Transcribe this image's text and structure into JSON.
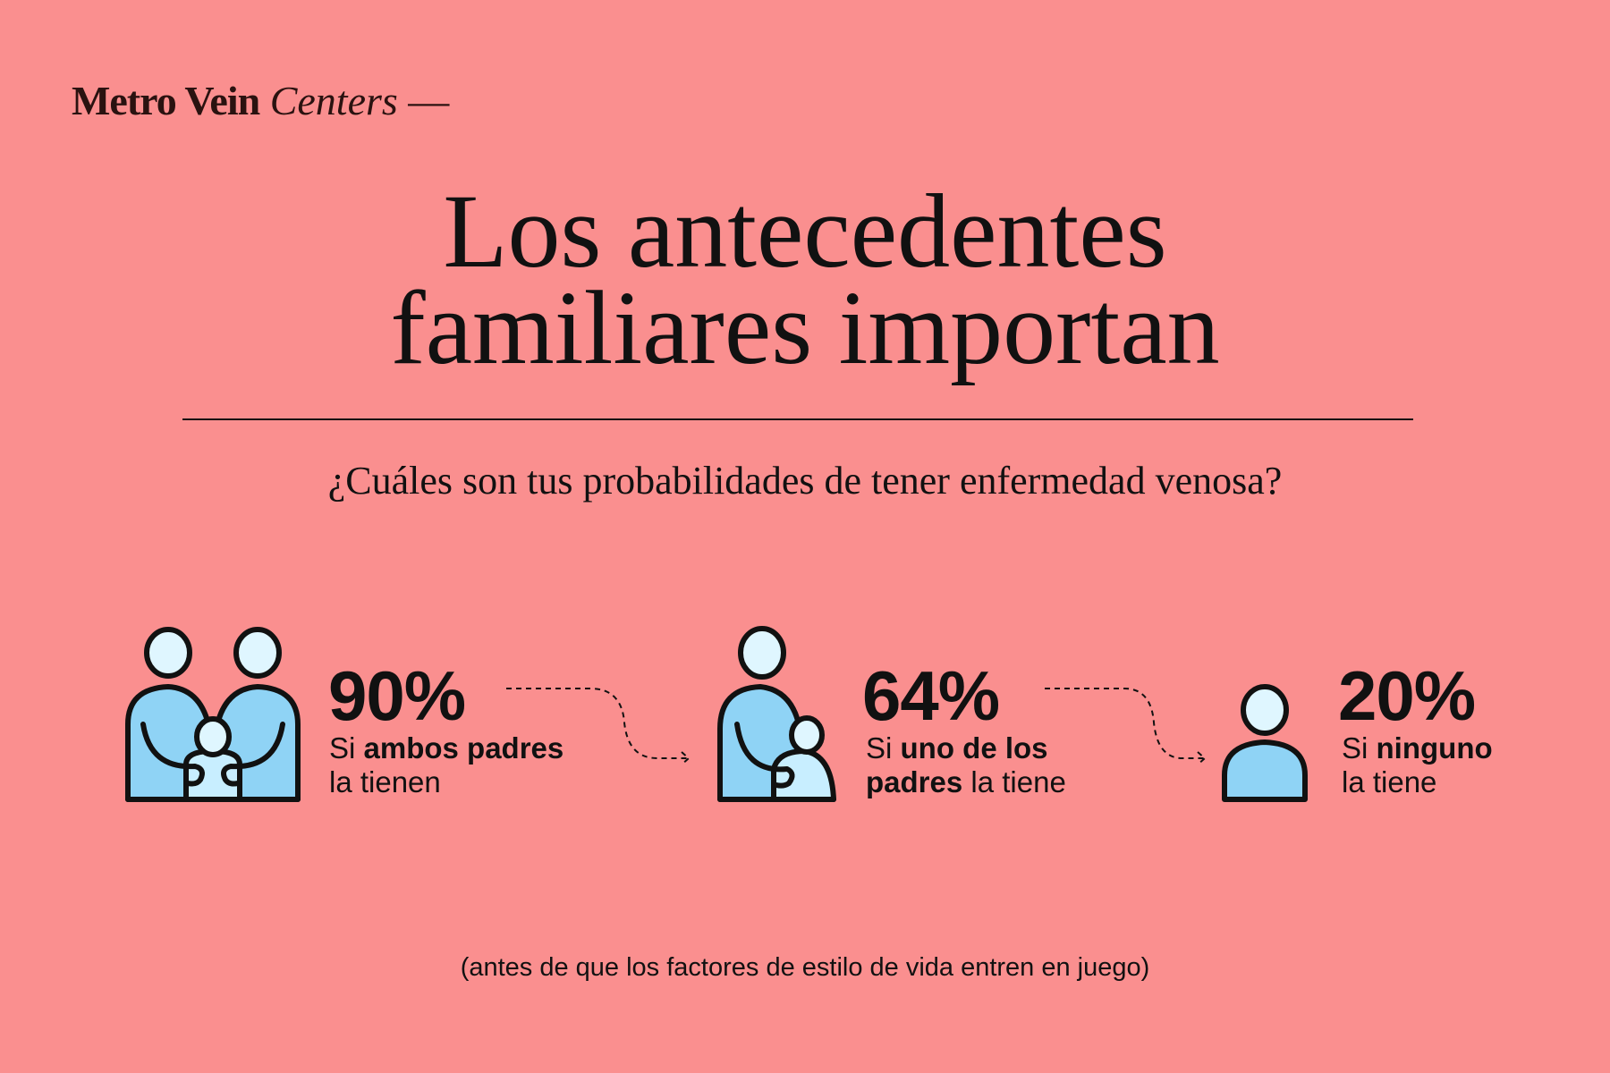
{
  "brand": {
    "name_bold": "Metro Vein",
    "name_italic": "Centers",
    "dash": "—"
  },
  "title": {
    "line1": "Los antecedentes",
    "line2": "familiares importan"
  },
  "subtitle": "¿Cuáles son tus probabilidades de tener enfermedad venosa?",
  "stats": [
    {
      "icon": "two-parents-child-icon",
      "percent": "90%",
      "pre": "Si ",
      "bold": "ambos padres",
      "post": "la tienen"
    },
    {
      "icon": "one-parent-child-icon",
      "percent": "64%",
      "pre": "Si ",
      "bold": "uno de los",
      "bold2": "padres",
      "post": " la tiene"
    },
    {
      "icon": "single-person-icon",
      "percent": "20%",
      "pre": "Si ",
      "bold": "ninguno",
      "post": "la tiene"
    }
  ],
  "footnote": "(antes de que los factores de estilo de vida entren en juego)",
  "colors": {
    "background": "#FA8F8F",
    "body_blue": "#8FD3F5",
    "head_pale": "#DFF6FF",
    "child_pale": "#C8EEFF",
    "ink": "#111111"
  }
}
